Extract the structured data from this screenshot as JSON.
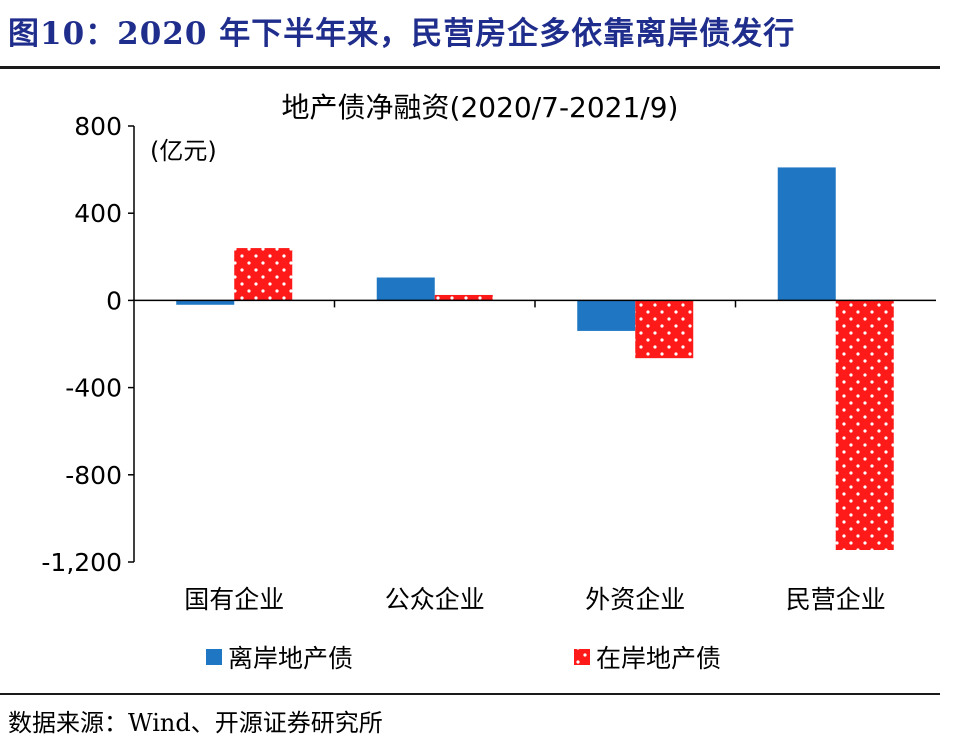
{
  "figure": {
    "title": "图10：2020 年下半年来，民营房企多依靠离岸债发行",
    "source": "数据来源：Wind、开源证券研究所"
  },
  "chart_data": {
    "type": "bar",
    "title": "地产债净融资(2020/7-2021/9)",
    "unit_label": "(亿元)",
    "categories": [
      "国有企业",
      "公众企业",
      "外资企业",
      "民营企业"
    ],
    "series": [
      {
        "name": "离岸地产债",
        "color": "#1f77c4",
        "pattern": "solid",
        "values": [
          -20,
          105,
          -140,
          610
        ]
      },
      {
        "name": "在岸地产债",
        "color": "#ff1a1a",
        "pattern": "white-dots",
        "values": [
          240,
          25,
          -265,
          -1145
        ]
      }
    ],
    "ylim": [
      -1200,
      800
    ],
    "yticks": [
      800,
      400,
      0,
      -400,
      -800,
      -1200
    ],
    "ytick_labels": [
      "800",
      "400",
      "0",
      "-400",
      "-800",
      "-1,200"
    ],
    "legend_position": "bottom",
    "grid": false
  }
}
